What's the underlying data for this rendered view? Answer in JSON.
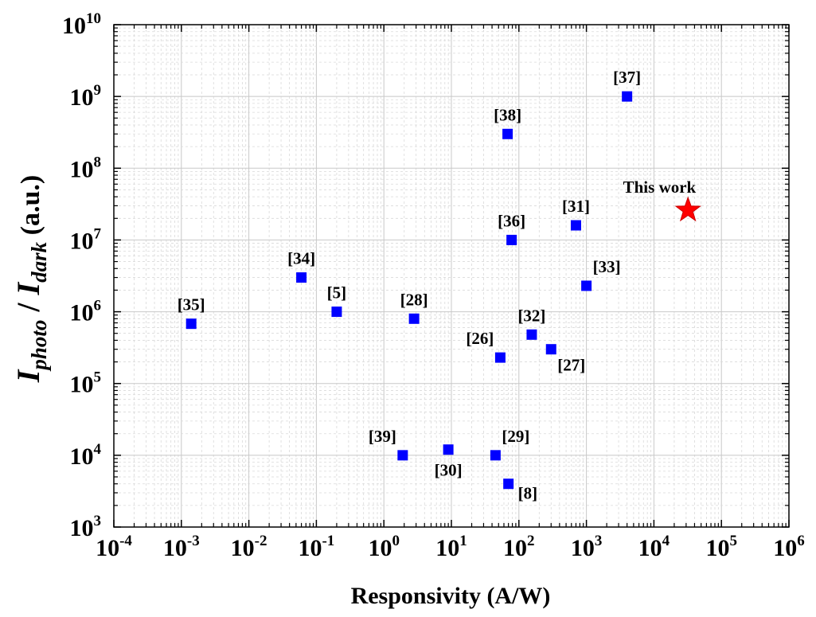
{
  "chart_data": {
    "type": "scatter",
    "title": "",
    "xlabel": "Responsivity (A/W)",
    "ylabel": {
      "main1": "I",
      "sub1": "photo",
      "sep": " / ",
      "main2": "I",
      "sub2": "dark",
      "unit": " (a.u.)"
    },
    "x_scale": "log",
    "y_scale": "log",
    "xlim": [
      0.0001,
      1000000
    ],
    "ylim": [
      1000,
      10000000000
    ],
    "grid": true,
    "x_ticks": [
      {
        "base": "10",
        "exp": "-4"
      },
      {
        "base": "10",
        "exp": "-3"
      },
      {
        "base": "10",
        "exp": "-2"
      },
      {
        "base": "10",
        "exp": "-1"
      },
      {
        "base": "10",
        "exp": "0"
      },
      {
        "base": "10",
        "exp": "1"
      },
      {
        "base": "10",
        "exp": "2"
      },
      {
        "base": "10",
        "exp": "3"
      },
      {
        "base": "10",
        "exp": "4"
      },
      {
        "base": "10",
        "exp": "5"
      },
      {
        "base": "10",
        "exp": "6"
      }
    ],
    "y_ticks": [
      {
        "base": "10",
        "exp": "3"
      },
      {
        "base": "10",
        "exp": "4"
      },
      {
        "base": "10",
        "exp": "5"
      },
      {
        "base": "10",
        "exp": "6"
      },
      {
        "base": "10",
        "exp": "7"
      },
      {
        "base": "10",
        "exp": "8"
      },
      {
        "base": "10",
        "exp": "9"
      },
      {
        "base": "10",
        "exp": "10"
      }
    ],
    "points": [
      {
        "label": "[35]",
        "x": 0.0014,
        "y": 680000,
        "label_pos": "above"
      },
      {
        "label": "[34]",
        "x": 0.06,
        "y": 3000000,
        "label_pos": "above"
      },
      {
        "label": "[5]",
        "x": 0.2,
        "y": 1000000,
        "label_pos": "above"
      },
      {
        "label": "[28]",
        "x": 2.8,
        "y": 800000,
        "label_pos": "above"
      },
      {
        "label": "[38]",
        "x": 68,
        "y": 300000000,
        "label_pos": "above"
      },
      {
        "label": "[37]",
        "x": 4000,
        "y": 1000000000,
        "label_pos": "above"
      },
      {
        "label": "[36]",
        "x": 78,
        "y": 10000000,
        "label_pos": "above"
      },
      {
        "label": "[31]",
        "x": 700,
        "y": 16000000,
        "label_pos": "above"
      },
      {
        "label": "[33]",
        "x": 1000,
        "y": 2300000,
        "label_pos": "above-right"
      },
      {
        "label": "[32]",
        "x": 155,
        "y": 480000,
        "label_pos": "above"
      },
      {
        "label": "[26]",
        "x": 53,
        "y": 230000,
        "label_pos": "above-left"
      },
      {
        "label": "[27]",
        "x": 300,
        "y": 300000,
        "label_pos": "below-right"
      },
      {
        "label": "[39]",
        "x": 1.9,
        "y": 10000,
        "label_pos": "above-left"
      },
      {
        "label": "[30]",
        "x": 9,
        "y": 12000,
        "label_pos": "below"
      },
      {
        "label": "[29]",
        "x": 45,
        "y": 10000,
        "label_pos": "above-right"
      },
      {
        "label": "[8]",
        "x": 70,
        "y": 4000,
        "label_pos": "right"
      }
    ],
    "highlight": {
      "label": "This work",
      "x": 32000,
      "y": 26000000,
      "marker": "star",
      "color": "#ff0000",
      "edge_color": "#cc0000"
    },
    "marker_color": "#0000ff"
  }
}
